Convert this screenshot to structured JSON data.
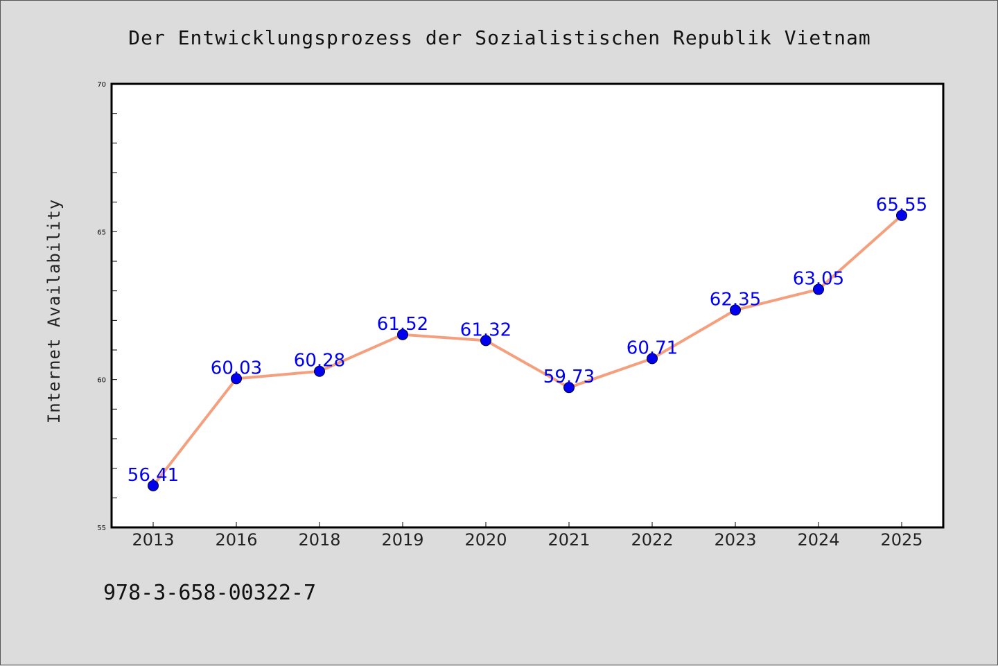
{
  "chart_data": {
    "type": "line",
    "title": "Der Entwicklungsprozess der Sozialistischen Republik Vietnam",
    "xlabel": "",
    "ylabel": "Internet Availability",
    "categories": [
      "2013",
      "2016",
      "2018",
      "2019",
      "2020",
      "2021",
      "2022",
      "2023",
      "2024",
      "2025"
    ],
    "values": [
      56.41,
      60.03,
      60.28,
      61.52,
      61.32,
      59.73,
      60.71,
      62.35,
      63.05,
      65.55
    ],
    "data_labels": [
      "56.41",
      "60.03",
      "60.28",
      "61.52",
      "61.32",
      "59.73",
      "60.71",
      "62.35",
      "63.05",
      "65.55"
    ],
    "ylim": [
      55,
      70
    ],
    "yticks": [
      "55",
      "60",
      "65",
      "70"
    ],
    "grid": false,
    "legend": "none",
    "line_color": "#f4a07e",
    "marker_color": "#0000ee",
    "label_color": "#0000ee"
  },
  "footer": {
    "isbn": "978-3-658-00322-7"
  }
}
